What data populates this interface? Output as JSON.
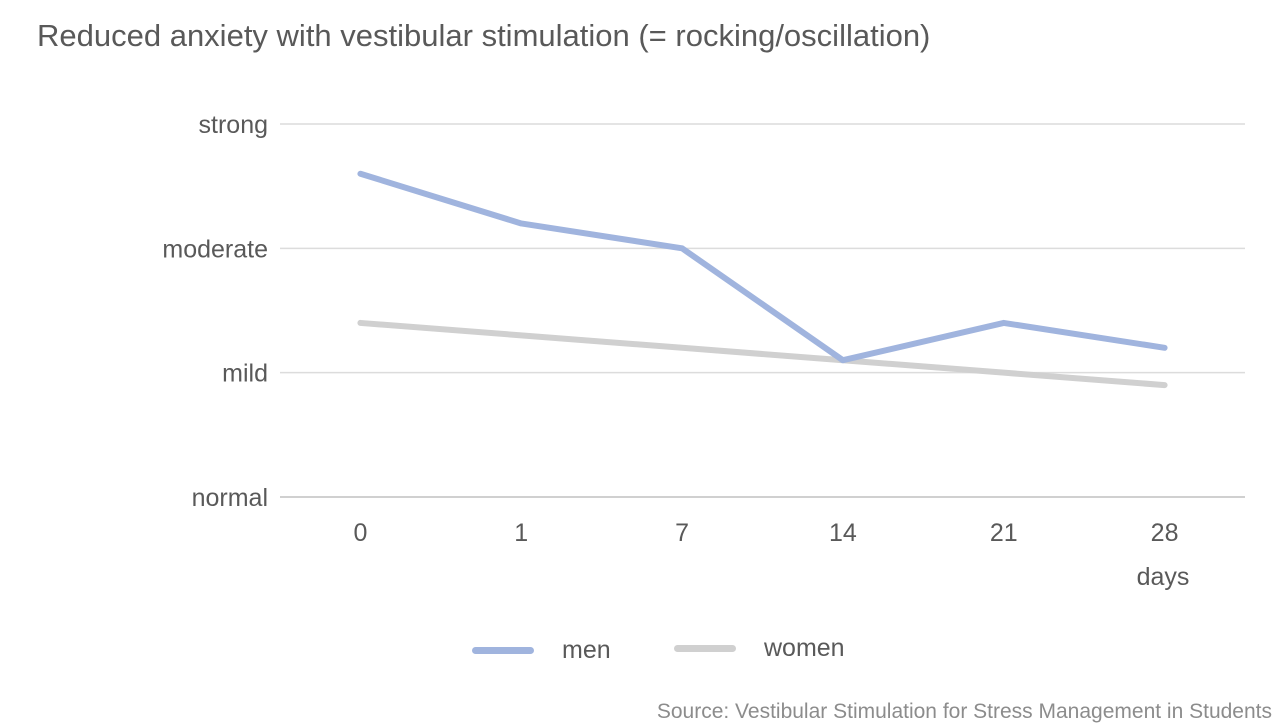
{
  "title": "Reduced anxiety with vestibular stimulation (= rocking/oscillation)",
  "source": "Source:  Vestibular Stimulation for Stress Management in Students",
  "chart_data": {
    "type": "line",
    "title": "Reduced anxiety with vestibular stimulation (= rocking/oscillation)",
    "xlabel": "days",
    "ylabel": "",
    "categories": [
      "0",
      "1",
      "7",
      "14",
      "21",
      "28"
    ],
    "y_tick_labels": [
      "normal",
      "mild",
      "moderate",
      "strong"
    ],
    "ylim": [
      0,
      3
    ],
    "grid": true,
    "legend_position": "bottom",
    "series": [
      {
        "name": "men",
        "color": "#a0b4de",
        "values": [
          2.6,
          2.2,
          2.0,
          1.1,
          1.4,
          1.2
        ]
      },
      {
        "name": "women",
        "color": "#d0d0d0",
        "values": [
          1.4,
          1.3,
          1.2,
          1.1,
          1.0,
          0.9
        ]
      }
    ]
  }
}
